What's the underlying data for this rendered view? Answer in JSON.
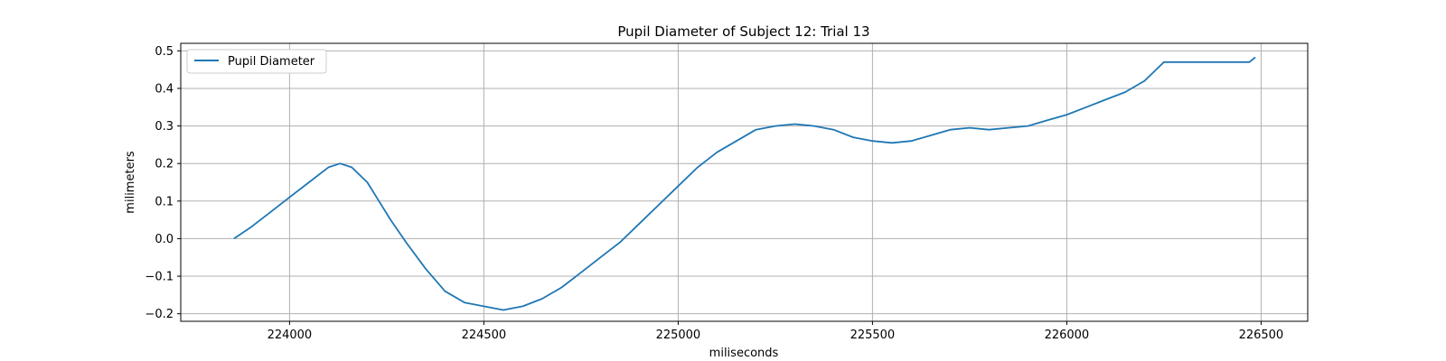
{
  "chart_data": {
    "type": "line",
    "title": "Pupil Diameter of Subject 12: Trial 13",
    "xlabel": "miliseconds",
    "ylabel": "milimeters",
    "xlim": [
      223720,
      226620
    ],
    "ylim": [
      -0.22,
      0.52
    ],
    "xticks": [
      224000,
      224500,
      225000,
      225500,
      226000,
      226500
    ],
    "yticks": [
      -0.2,
      -0.1,
      0.0,
      0.1,
      0.2,
      0.3,
      0.4,
      0.5
    ],
    "xtick_labels": [
      "224000",
      "224500",
      "225000",
      "225500",
      "226000",
      "226500"
    ],
    "ytick_labels": [
      "−0.2",
      "−0.1",
      "0.0",
      "0.1",
      "0.2",
      "0.3",
      "0.4",
      "0.5"
    ],
    "grid": true,
    "legend_position": "top-left",
    "series": [
      {
        "name": "Pupil Diameter",
        "color": "#1f77b4",
        "x": [
          223857,
          223900,
          223950,
          224000,
          224050,
          224100,
          224130,
          224160,
          224200,
          224230,
          224260,
          224300,
          224350,
          224400,
          224450,
          224500,
          224550,
          224600,
          224650,
          224700,
          224750,
          224800,
          224850,
          224900,
          224950,
          225000,
          225050,
          225100,
          225150,
          225200,
          225250,
          225300,
          225350,
          225400,
          225450,
          225500,
          225550,
          225600,
          225650,
          225700,
          225750,
          225800,
          225850,
          225900,
          225950,
          226000,
          226050,
          226100,
          226150,
          226200,
          226230,
          226250,
          226300,
          226350,
          226400,
          226450,
          226470,
          226485
        ],
        "y": [
          0.0,
          0.03,
          0.07,
          0.11,
          0.15,
          0.19,
          0.2,
          0.19,
          0.15,
          0.1,
          0.05,
          -0.01,
          -0.08,
          -0.14,
          -0.17,
          -0.18,
          -0.19,
          -0.18,
          -0.16,
          -0.13,
          -0.09,
          -0.05,
          -0.01,
          0.04,
          0.09,
          0.14,
          0.19,
          0.23,
          0.26,
          0.29,
          0.3,
          0.305,
          0.3,
          0.29,
          0.27,
          0.26,
          0.255,
          0.26,
          0.275,
          0.29,
          0.295,
          0.29,
          0.295,
          0.3,
          0.315,
          0.33,
          0.35,
          0.37,
          0.39,
          0.42,
          0.45,
          0.47,
          0.47,
          0.47,
          0.47,
          0.47,
          0.47,
          0.483
        ]
      }
    ]
  }
}
